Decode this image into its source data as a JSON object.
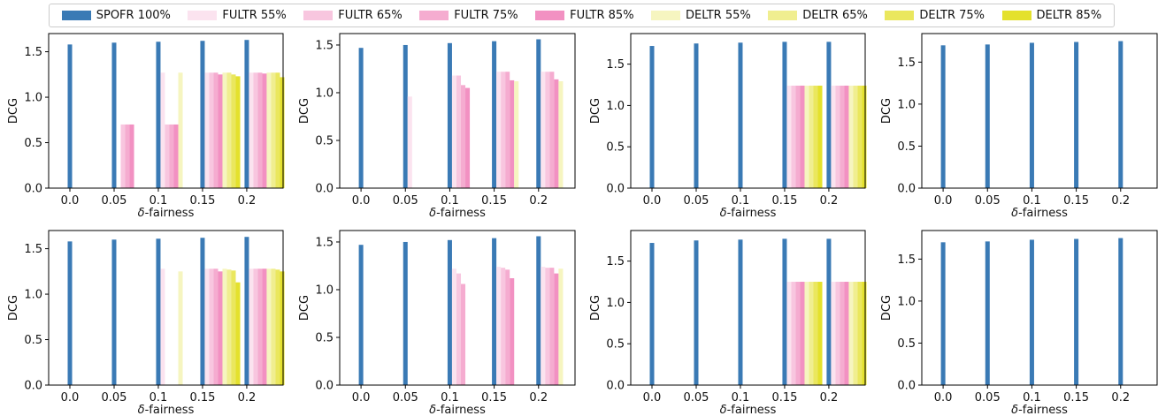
{
  "legend": [
    {
      "name": "SPOFR 100%",
      "color": "#3a7ab5"
    },
    {
      "name": "FULTR 55%",
      "color": "#fbe3ef"
    },
    {
      "name": "FULTR 65%",
      "color": "#f8c6df"
    },
    {
      "name": "FULTR 75%",
      "color": "#f5acd0"
    },
    {
      "name": "FULTR 85%",
      "color": "#f291c2"
    },
    {
      "name": "DELTR 55%",
      "color": "#f6f5c0"
    },
    {
      "name": "DELTR 65%",
      "color": "#f0ee90"
    },
    {
      "name": "DELTR 75%",
      "color": "#eae75e"
    },
    {
      "name": "DELTR 85%",
      "color": "#e4e12d"
    }
  ],
  "chart_data": [
    {
      "type": "bar",
      "categories": [
        "0.0",
        "0.05",
        "0.1",
        "0.15",
        "0.2"
      ],
      "xlabel": "δ-fairness",
      "ylabel": "DCG",
      "ylim": [
        0,
        1.7
      ],
      "yticks": [
        "0.0",
        "0.5",
        "1.0",
        "1.5"
      ],
      "series": [
        {
          "name": "SPOFR 100%",
          "values": [
            1.58,
            1.6,
            1.61,
            1.62,
            1.63
          ]
        },
        {
          "name": "FULTR 55%",
          "values": [
            0,
            0,
            1.27,
            1.27,
            1.27
          ]
        },
        {
          "name": "FULTR 65%",
          "values": [
            0,
            0.7,
            0.7,
            1.27,
            1.27
          ]
        },
        {
          "name": "FULTR 75%",
          "values": [
            0,
            0.7,
            0.7,
            1.27,
            1.27
          ]
        },
        {
          "name": "FULTR 85%",
          "values": [
            0,
            0.7,
            0.7,
            1.25,
            1.26
          ]
        },
        {
          "name": "DELTR 55%",
          "values": [
            0,
            0,
            1.27,
            1.27,
            1.27
          ]
        },
        {
          "name": "DELTR 65%",
          "values": [
            0,
            0,
            0,
            1.27,
            1.27
          ]
        },
        {
          "name": "DELTR 75%",
          "values": [
            0,
            0,
            0,
            1.25,
            1.27
          ]
        },
        {
          "name": "DELTR 85%",
          "values": [
            0,
            0,
            0,
            1.23,
            1.22
          ]
        }
      ]
    },
    {
      "type": "bar",
      "categories": [
        "0.0",
        "0.05",
        "0.1",
        "0.15",
        "0.2"
      ],
      "xlabel": "δ-fairness",
      "ylabel": "DCG",
      "ylim": [
        0,
        1.62
      ],
      "yticks": [
        "0.0",
        "0.5",
        "1.0",
        "1.5"
      ],
      "series": [
        {
          "name": "SPOFR 100%",
          "values": [
            1.47,
            1.5,
            1.52,
            1.54,
            1.56
          ]
        },
        {
          "name": "FULTR 55%",
          "values": [
            0,
            0.96,
            1.18,
            1.22,
            1.22
          ]
        },
        {
          "name": "FULTR 65%",
          "values": [
            0,
            0,
            1.18,
            1.22,
            1.22
          ]
        },
        {
          "name": "FULTR 75%",
          "values": [
            0,
            0,
            1.08,
            1.22,
            1.22
          ]
        },
        {
          "name": "FULTR 85%",
          "values": [
            0,
            0,
            1.05,
            1.13,
            1.14
          ]
        },
        {
          "name": "DELTR 55%",
          "values": [
            0,
            0,
            0,
            1.12,
            1.12
          ]
        },
        {
          "name": "DELTR 65%",
          "values": [
            0,
            0,
            0,
            0,
            0
          ]
        },
        {
          "name": "DELTR 75%",
          "values": [
            0,
            0,
            0,
            0,
            0
          ]
        },
        {
          "name": "DELTR 85%",
          "values": [
            0,
            0,
            0,
            0,
            0
          ]
        }
      ]
    },
    {
      "type": "bar",
      "categories": [
        "0.0",
        "0.05",
        "0.1",
        "0.15",
        "0.2"
      ],
      "xlabel": "δ-fairness",
      "ylabel": "DCG",
      "ylim": [
        0,
        1.87
      ],
      "yticks": [
        "0.0",
        "0.5",
        "1.0",
        "1.5"
      ],
      "series": [
        {
          "name": "SPOFR 100%",
          "values": [
            1.72,
            1.75,
            1.76,
            1.77,
            1.77
          ]
        },
        {
          "name": "FULTR 55%",
          "values": [
            0,
            0,
            0,
            1.24,
            1.24
          ]
        },
        {
          "name": "FULTR 65%",
          "values": [
            0,
            0,
            0,
            1.24,
            1.24
          ]
        },
        {
          "name": "FULTR 75%",
          "values": [
            0,
            0,
            0,
            1.24,
            1.24
          ]
        },
        {
          "name": "FULTR 85%",
          "values": [
            0,
            0,
            0,
            1.24,
            1.24
          ]
        },
        {
          "name": "DELTR 55%",
          "values": [
            0,
            0,
            0,
            1.24,
            1.24
          ]
        },
        {
          "name": "DELTR 65%",
          "values": [
            0,
            0,
            0,
            1.24,
            1.24
          ]
        },
        {
          "name": "DELTR 75%",
          "values": [
            0,
            0,
            0,
            1.24,
            1.24
          ]
        },
        {
          "name": "DELTR 85%",
          "values": [
            0,
            0,
            0,
            1.24,
            1.24
          ]
        }
      ]
    },
    {
      "type": "bar",
      "categories": [
        "0.0",
        "0.05",
        "0.1",
        "0.15",
        "0.2"
      ],
      "xlabel": "δ-fairness",
      "ylabel": "DCG",
      "ylim": [
        0,
        1.84
      ],
      "yticks": [
        "0.0",
        "0.5",
        "1.0",
        "1.5"
      ],
      "series": [
        {
          "name": "SPOFR 100%",
          "values": [
            1.7,
            1.71,
            1.73,
            1.74,
            1.75
          ]
        },
        {
          "name": "FULTR 55%",
          "values": [
            0,
            0,
            0,
            0,
            0
          ]
        },
        {
          "name": "FULTR 65%",
          "values": [
            0,
            0,
            0,
            0,
            0
          ]
        },
        {
          "name": "FULTR 75%",
          "values": [
            0,
            0,
            0,
            0,
            0
          ]
        },
        {
          "name": "FULTR 85%",
          "values": [
            0,
            0,
            0,
            0,
            0
          ]
        },
        {
          "name": "DELTR 55%",
          "values": [
            0,
            0,
            0,
            0,
            0
          ]
        },
        {
          "name": "DELTR 65%",
          "values": [
            0,
            0,
            0,
            0,
            0
          ]
        },
        {
          "name": "DELTR 75%",
          "values": [
            0,
            0,
            0,
            0,
            0
          ]
        },
        {
          "name": "DELTR 85%",
          "values": [
            0,
            0,
            0,
            0,
            0
          ]
        }
      ]
    },
    {
      "type": "bar",
      "categories": [
        "0.0",
        "0.05",
        "0.1",
        "0.15",
        "0.2"
      ],
      "xlabel": "δ-fairness",
      "ylabel": "DCG",
      "ylim": [
        0,
        1.7
      ],
      "yticks": [
        "0.0",
        "0.5",
        "1.0",
        "1.5"
      ],
      "series": [
        {
          "name": "SPOFR 100%",
          "values": [
            1.58,
            1.6,
            1.61,
            1.62,
            1.63
          ]
        },
        {
          "name": "FULTR 55%",
          "values": [
            0,
            0,
            1.28,
            1.28,
            1.28
          ]
        },
        {
          "name": "FULTR 65%",
          "values": [
            0,
            0,
            0,
            1.28,
            1.28
          ]
        },
        {
          "name": "FULTR 75%",
          "values": [
            0,
            0,
            0,
            1.28,
            1.28
          ]
        },
        {
          "name": "FULTR 85%",
          "values": [
            0,
            0,
            0,
            1.25,
            1.28
          ]
        },
        {
          "name": "DELTR 55%",
          "values": [
            0,
            0,
            1.25,
            1.28,
            1.28
          ]
        },
        {
          "name": "DELTR 65%",
          "values": [
            0,
            0,
            0,
            1.27,
            1.28
          ]
        },
        {
          "name": "DELTR 75%",
          "values": [
            0,
            0,
            0,
            1.26,
            1.27
          ]
        },
        {
          "name": "DELTR 85%",
          "values": [
            0,
            0,
            0,
            1.13,
            1.25
          ]
        }
      ]
    },
    {
      "type": "bar",
      "categories": [
        "0.0",
        "0.05",
        "0.1",
        "0.15",
        "0.2"
      ],
      "xlabel": "δ-fairness",
      "ylabel": "DCG",
      "ylim": [
        0,
        1.62
      ],
      "yticks": [
        "0.0",
        "0.5",
        "1.0",
        "1.5"
      ],
      "series": [
        {
          "name": "SPOFR 100%",
          "values": [
            1.47,
            1.5,
            1.52,
            1.54,
            1.56
          ]
        },
        {
          "name": "FULTR 55%",
          "values": [
            0,
            0,
            1.22,
            1.24,
            1.24
          ]
        },
        {
          "name": "FULTR 65%",
          "values": [
            0,
            0,
            1.17,
            1.23,
            1.23
          ]
        },
        {
          "name": "FULTR 75%",
          "values": [
            0,
            0,
            1.06,
            1.21,
            1.23
          ]
        },
        {
          "name": "FULTR 85%",
          "values": [
            0,
            0,
            0,
            1.12,
            1.17
          ]
        },
        {
          "name": "DELTR 55%",
          "values": [
            0,
            0,
            0,
            0,
            1.22
          ]
        },
        {
          "name": "DELTR 65%",
          "values": [
            0,
            0,
            0,
            0,
            0
          ]
        },
        {
          "name": "DELTR 75%",
          "values": [
            0,
            0,
            0,
            0,
            0
          ]
        },
        {
          "name": "DELTR 85%",
          "values": [
            0,
            0,
            0,
            0,
            0
          ]
        }
      ]
    },
    {
      "type": "bar",
      "categories": [
        "0.0",
        "0.05",
        "0.1",
        "0.15",
        "0.2"
      ],
      "xlabel": "δ-fairness",
      "ylabel": "DCG",
      "ylim": [
        0,
        1.87
      ],
      "yticks": [
        "0.0",
        "0.5",
        "1.0",
        "1.5"
      ],
      "series": [
        {
          "name": "SPOFR 100%",
          "values": [
            1.72,
            1.75,
            1.76,
            1.77,
            1.77
          ]
        },
        {
          "name": "FULTR 55%",
          "values": [
            0,
            0,
            0,
            1.25,
            1.25
          ]
        },
        {
          "name": "FULTR 65%",
          "values": [
            0,
            0,
            0,
            1.25,
            1.25
          ]
        },
        {
          "name": "FULTR 75%",
          "values": [
            0,
            0,
            0,
            1.25,
            1.25
          ]
        },
        {
          "name": "FULTR 85%",
          "values": [
            0,
            0,
            0,
            1.25,
            1.25
          ]
        },
        {
          "name": "DELTR 55%",
          "values": [
            0,
            0,
            0,
            1.25,
            1.25
          ]
        },
        {
          "name": "DELTR 65%",
          "values": [
            0,
            0,
            0,
            1.25,
            1.25
          ]
        },
        {
          "name": "DELTR 75%",
          "values": [
            0,
            0,
            0,
            1.25,
            1.25
          ]
        },
        {
          "name": "DELTR 85%",
          "values": [
            0,
            0,
            0,
            1.25,
            1.25
          ]
        }
      ]
    },
    {
      "type": "bar",
      "categories": [
        "0.0",
        "0.05",
        "0.1",
        "0.15",
        "0.2"
      ],
      "xlabel": "δ-fairness",
      "ylabel": "DCG",
      "ylim": [
        0,
        1.84
      ],
      "yticks": [
        "0.0",
        "0.5",
        "1.0",
        "1.5"
      ],
      "series": [
        {
          "name": "SPOFR 100%",
          "values": [
            1.7,
            1.71,
            1.73,
            1.74,
            1.75
          ]
        },
        {
          "name": "FULTR 55%",
          "values": [
            0,
            0,
            0,
            0,
            0
          ]
        },
        {
          "name": "FULTR 65%",
          "values": [
            0,
            0,
            0,
            0,
            0
          ]
        },
        {
          "name": "FULTR 75%",
          "values": [
            0,
            0,
            0,
            0,
            0
          ]
        },
        {
          "name": "FULTR 85%",
          "values": [
            0,
            0,
            0,
            0,
            0
          ]
        },
        {
          "name": "DELTR 55%",
          "values": [
            0,
            0,
            0,
            0,
            0
          ]
        },
        {
          "name": "DELTR 65%",
          "values": [
            0,
            0,
            0,
            0,
            0
          ]
        },
        {
          "name": "DELTR 75%",
          "values": [
            0,
            0,
            0,
            0,
            0
          ]
        },
        {
          "name": "DELTR 85%",
          "values": [
            0,
            0,
            0,
            0,
            0
          ]
        }
      ]
    }
  ]
}
